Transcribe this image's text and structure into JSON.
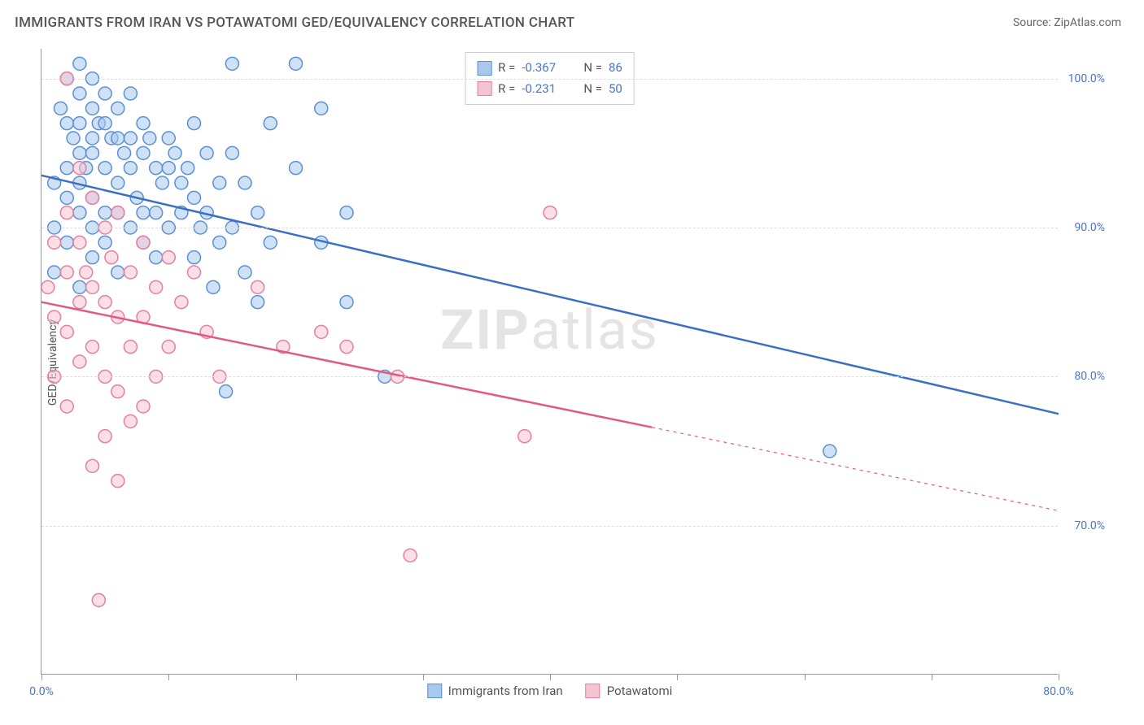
{
  "header": {
    "title": "IMMIGRANTS FROM IRAN VS POTAWATOMI GED/EQUIVALENCY CORRELATION CHART",
    "source": "Source: ZipAtlas.com"
  },
  "chart": {
    "type": "scatter",
    "ylabel": "GED/Equivalency",
    "xlim": [
      0,
      80
    ],
    "ylim": [
      60,
      102
    ],
    "x_ticks": [
      0,
      10,
      20,
      30,
      40,
      50,
      60,
      70,
      80
    ],
    "x_tick_labels_shown": {
      "0": "0.0%",
      "80": "80.0%"
    },
    "y_gridlines": [
      70,
      80,
      90,
      100
    ],
    "y_tick_labels": {
      "70": "70.0%",
      "80": "80.0%",
      "90": "90.0%",
      "100": "100.0%"
    },
    "background_color": "#ffffff",
    "grid_color": "#dddddd",
    "axis_color": "#999999",
    "marker_radius": 8,
    "marker_stroke_width": 1.5,
    "line_width": 2.5,
    "watermark": "ZIPatlas",
    "series": [
      {
        "name": "Immigrants from Iran",
        "color_fill": "#a8c8ec",
        "color_stroke": "#5b8fd6",
        "line_color": "#3b6fc6",
        "R": "-0.367",
        "N": "86",
        "trend": {
          "x1": 0,
          "y1": 93.5,
          "x2": 80,
          "y2": 77.5,
          "dashed_from_x": null
        },
        "points": [
          [
            1,
            93
          ],
          [
            1,
            90
          ],
          [
            1,
            87
          ],
          [
            1.5,
            98
          ],
          [
            2,
            100
          ],
          [
            2,
            97
          ],
          [
            2,
            94
          ],
          [
            2,
            92
          ],
          [
            2,
            89
          ],
          [
            2.5,
            96
          ],
          [
            3,
            101
          ],
          [
            3,
            99
          ],
          [
            3,
            97
          ],
          [
            3,
            95
          ],
          [
            3,
            93
          ],
          [
            3,
            91
          ],
          [
            3,
            86
          ],
          [
            3.5,
            94
          ],
          [
            4,
            100
          ],
          [
            4,
            98
          ],
          [
            4,
            96
          ],
          [
            4,
            95
          ],
          [
            4,
            92
          ],
          [
            4,
            90
          ],
          [
            4,
            88
          ],
          [
            4.5,
            97
          ],
          [
            5,
            99
          ],
          [
            5,
            97
          ],
          [
            5,
            94
          ],
          [
            5,
            91
          ],
          [
            5,
            89
          ],
          [
            5.5,
            96
          ],
          [
            6,
            98
          ],
          [
            6,
            96
          ],
          [
            6,
            93
          ],
          [
            6,
            91
          ],
          [
            6,
            87
          ],
          [
            6.5,
            95
          ],
          [
            7,
            99
          ],
          [
            7,
            96
          ],
          [
            7,
            94
          ],
          [
            7,
            90
          ],
          [
            7.5,
            92
          ],
          [
            8,
            97
          ],
          [
            8,
            95
          ],
          [
            8,
            91
          ],
          [
            8,
            89
          ],
          [
            8.5,
            96
          ],
          [
            9,
            94
          ],
          [
            9,
            91
          ],
          [
            9,
            88
          ],
          [
            9.5,
            93
          ],
          [
            10,
            96
          ],
          [
            10,
            94
          ],
          [
            10,
            90
          ],
          [
            10.5,
            95
          ],
          [
            11,
            93
          ],
          [
            11,
            91
          ],
          [
            11.5,
            94
          ],
          [
            12,
            97
          ],
          [
            12,
            92
          ],
          [
            12,
            88
          ],
          [
            12.5,
            90
          ],
          [
            13,
            95
          ],
          [
            13,
            91
          ],
          [
            13.5,
            86
          ],
          [
            14,
            93
          ],
          [
            14,
            89
          ],
          [
            14.5,
            79
          ],
          [
            15,
            101
          ],
          [
            15,
            95
          ],
          [
            15,
            90
          ],
          [
            16,
            93
          ],
          [
            16,
            87
          ],
          [
            17,
            91
          ],
          [
            17,
            85
          ],
          [
            18,
            97
          ],
          [
            18,
            89
          ],
          [
            20,
            101
          ],
          [
            20,
            94
          ],
          [
            22,
            98
          ],
          [
            22,
            89
          ],
          [
            24,
            91
          ],
          [
            24,
            85
          ],
          [
            27,
            80
          ],
          [
            62,
            75
          ]
        ]
      },
      {
        "name": "Potawatomi",
        "color_fill": "#f5c4d1",
        "color_stroke": "#e67fa0",
        "line_color": "#e05a85",
        "R": "-0.231",
        "N": "50",
        "trend": {
          "x1": 0,
          "y1": 85,
          "x2": 80,
          "y2": 71,
          "dashed_from_x": 48
        },
        "points": [
          [
            0.5,
            86
          ],
          [
            1,
            89
          ],
          [
            1,
            84
          ],
          [
            1,
            80
          ],
          [
            2,
            100
          ],
          [
            2,
            91
          ],
          [
            2,
            87
          ],
          [
            2,
            83
          ],
          [
            2,
            78
          ],
          [
            3,
            94
          ],
          [
            3,
            89
          ],
          [
            3,
            85
          ],
          [
            3,
            81
          ],
          [
            3.5,
            87
          ],
          [
            4,
            92
          ],
          [
            4,
            86
          ],
          [
            4,
            82
          ],
          [
            4,
            74
          ],
          [
            4.5,
            65
          ],
          [
            5,
            90
          ],
          [
            5,
            85
          ],
          [
            5,
            80
          ],
          [
            5,
            76
          ],
          [
            5.5,
            88
          ],
          [
            6,
            91
          ],
          [
            6,
            84
          ],
          [
            6,
            79
          ],
          [
            6,
            73
          ],
          [
            7,
            87
          ],
          [
            7,
            82
          ],
          [
            7,
            77
          ],
          [
            8,
            89
          ],
          [
            8,
            84
          ],
          [
            8,
            78
          ],
          [
            9,
            86
          ],
          [
            9,
            80
          ],
          [
            10,
            88
          ],
          [
            10,
            82
          ],
          [
            11,
            85
          ],
          [
            12,
            87
          ],
          [
            13,
            83
          ],
          [
            14,
            80
          ],
          [
            17,
            86
          ],
          [
            19,
            82
          ],
          [
            22,
            83
          ],
          [
            24,
            82
          ],
          [
            28,
            80
          ],
          [
            29,
            68
          ],
          [
            38,
            76
          ],
          [
            40,
            91
          ]
        ]
      }
    ],
    "legend_top_label_R": "R =",
    "legend_top_label_N": "N =",
    "legend_bottom": [
      "Immigrants from Iran",
      "Potawatomi"
    ]
  }
}
